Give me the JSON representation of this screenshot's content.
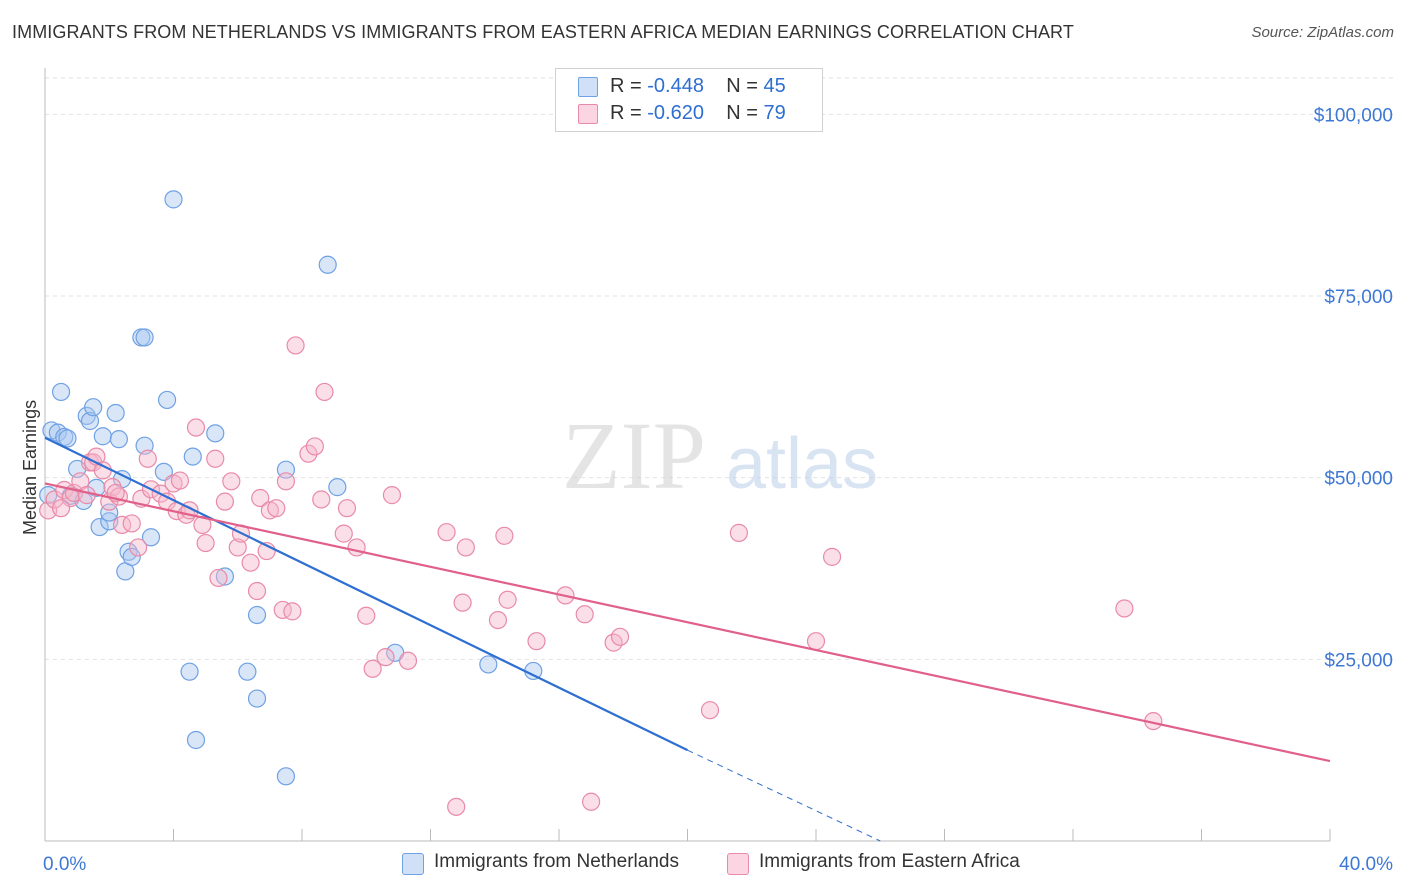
{
  "header": {
    "title": "IMMIGRANTS FROM NETHERLANDS VS IMMIGRANTS FROM EASTERN AFRICA MEDIAN EARNINGS CORRELATION CHART",
    "source": "Source: ZipAtlas.com"
  },
  "watermark": {
    "zip": "ZIP",
    "atlas": "atlas"
  },
  "legend_top": {
    "rows": [
      {
        "r_label": "R =",
        "r_value": "-0.448",
        "n_label": "N =",
        "n_value": "45",
        "color": "#a9c8f0"
      },
      {
        "r_label": "R =",
        "r_value": "-0.620",
        "n_label": "N =",
        "n_value": "79",
        "color": "#f5b8cb"
      }
    ]
  },
  "legend_bottom": {
    "items": [
      {
        "label": "Immigrants from Netherlands",
        "color": "#a9c8f0"
      },
      {
        "label": "Immigrants from Eastern Africa",
        "color": "#f5b8cb"
      }
    ]
  },
  "chart_data": {
    "type": "scatter",
    "title": "IMMIGRANTS FROM NETHERLANDS VS IMMIGRANTS FROM EASTERN AFRICA MEDIAN EARNINGS CORRELATION CHART",
    "xlabel": "",
    "ylabel": "Median Earnings",
    "xlim": [
      0,
      40
    ],
    "ylim": [
      0,
      105000
    ],
    "x_ticks_labels": [
      "0.0%",
      "40.0%"
    ],
    "y_ticks": [
      25000,
      50000,
      75000,
      100000
    ],
    "y_tick_labels": [
      "$25,000",
      "$50,000",
      "$75,000",
      "$100,000"
    ],
    "grid": true,
    "legend_position": "top-center",
    "series": [
      {
        "name": "Immigrants from Netherlands",
        "color": "#6fa1e4",
        "fill": "#a9c8f0",
        "trend_color": "#2e6fd1",
        "trend": {
          "x0": 0.0,
          "y0": 55500,
          "x1": 20.0,
          "y1": 12500,
          "dashed_to_x": 26.0,
          "dashed_to_y": -200
        },
        "points": [
          [
            0.2,
            56500
          ],
          [
            0.4,
            56200
          ],
          [
            0.5,
            61800
          ],
          [
            0.6,
            55600
          ],
          [
            0.7,
            55400
          ],
          [
            0.8,
            47500
          ],
          [
            1.0,
            51200
          ],
          [
            1.2,
            46800
          ],
          [
            1.3,
            58500
          ],
          [
            1.4,
            57800
          ],
          [
            1.5,
            59700
          ],
          [
            1.6,
            48600
          ],
          [
            1.7,
            43200
          ],
          [
            1.8,
            55700
          ],
          [
            2.0,
            44000
          ],
          [
            2.0,
            45200
          ],
          [
            2.2,
            58900
          ],
          [
            2.3,
            55300
          ],
          [
            2.4,
            49800
          ],
          [
            2.5,
            37100
          ],
          [
            2.6,
            39800
          ],
          [
            2.7,
            39100
          ],
          [
            3.0,
            69300
          ],
          [
            3.1,
            54400
          ],
          [
            3.1,
            69300
          ],
          [
            3.3,
            41800
          ],
          [
            3.7,
            50800
          ],
          [
            3.8,
            60700
          ],
          [
            4.0,
            88300
          ],
          [
            4.5,
            23300
          ],
          [
            4.6,
            52900
          ],
          [
            4.7,
            13900
          ],
          [
            5.3,
            56100
          ],
          [
            5.6,
            36400
          ],
          [
            6.3,
            23300
          ],
          [
            6.6,
            31100
          ],
          [
            6.6,
            19600
          ],
          [
            7.5,
            51100
          ],
          [
            7.5,
            8900
          ],
          [
            8.8,
            79300
          ],
          [
            9.1,
            48700
          ],
          [
            10.9,
            25900
          ],
          [
            13.8,
            24300
          ],
          [
            15.2,
            23400
          ],
          [
            0.1,
            47600
          ]
        ]
      },
      {
        "name": "Immigrants from Eastern Africa",
        "color": "#e98aa8",
        "fill": "#f5b8cb",
        "trend_color": "#e0608a",
        "trend": {
          "x0": 0.0,
          "y0": 49200,
          "x1": 40.0,
          "y1": 11000
        },
        "points": [
          [
            0.1,
            45500
          ],
          [
            0.3,
            47000
          ],
          [
            0.6,
            48300
          ],
          [
            0.8,
            47200
          ],
          [
            0.9,
            47900
          ],
          [
            1.1,
            49500
          ],
          [
            1.3,
            47600
          ],
          [
            1.4,
            52100
          ],
          [
            1.5,
            52100
          ],
          [
            1.6,
            52900
          ],
          [
            1.8,
            51000
          ],
          [
            2.0,
            46700
          ],
          [
            2.1,
            48700
          ],
          [
            2.3,
            47400
          ],
          [
            2.4,
            43500
          ],
          [
            2.7,
            43700
          ],
          [
            2.9,
            40400
          ],
          [
            3.0,
            47100
          ],
          [
            3.2,
            52600
          ],
          [
            3.3,
            48400
          ],
          [
            3.6,
            47800
          ],
          [
            3.8,
            46700
          ],
          [
            4.0,
            49200
          ],
          [
            4.1,
            45400
          ],
          [
            4.2,
            49600
          ],
          [
            4.4,
            44900
          ],
          [
            4.5,
            45500
          ],
          [
            4.7,
            56900
          ],
          [
            4.9,
            43500
          ],
          [
            5.0,
            41000
          ],
          [
            5.3,
            52600
          ],
          [
            5.4,
            36200
          ],
          [
            5.6,
            46700
          ],
          [
            5.8,
            49500
          ],
          [
            6.0,
            40400
          ],
          [
            6.1,
            42300
          ],
          [
            6.4,
            38300
          ],
          [
            6.6,
            34400
          ],
          [
            6.7,
            47200
          ],
          [
            6.9,
            39900
          ],
          [
            7.0,
            45500
          ],
          [
            7.2,
            45800
          ],
          [
            7.4,
            31800
          ],
          [
            7.5,
            49500
          ],
          [
            7.7,
            31600
          ],
          [
            7.8,
            68200
          ],
          [
            8.2,
            53300
          ],
          [
            8.4,
            54300
          ],
          [
            8.6,
            47000
          ],
          [
            8.7,
            61800
          ],
          [
            9.3,
            42300
          ],
          [
            9.4,
            45800
          ],
          [
            9.7,
            40400
          ],
          [
            10.0,
            31000
          ],
          [
            10.2,
            23700
          ],
          [
            10.6,
            25300
          ],
          [
            10.8,
            47600
          ],
          [
            11.3,
            24800
          ],
          [
            12.5,
            42500
          ],
          [
            12.8,
            4700
          ],
          [
            13.0,
            32800
          ],
          [
            13.1,
            40400
          ],
          [
            14.1,
            30400
          ],
          [
            14.3,
            42000
          ],
          [
            14.4,
            33200
          ],
          [
            15.3,
            27500
          ],
          [
            16.2,
            33800
          ],
          [
            16.8,
            31200
          ],
          [
            17.0,
            5400
          ],
          [
            17.7,
            27300
          ],
          [
            17.9,
            28100
          ],
          [
            20.7,
            18000
          ],
          [
            21.6,
            42400
          ],
          [
            24.0,
            27500
          ],
          [
            24.5,
            39100
          ],
          [
            33.6,
            32000
          ],
          [
            34.5,
            16500
          ],
          [
            0.5,
            45800
          ],
          [
            2.2,
            47900
          ]
        ]
      }
    ]
  }
}
